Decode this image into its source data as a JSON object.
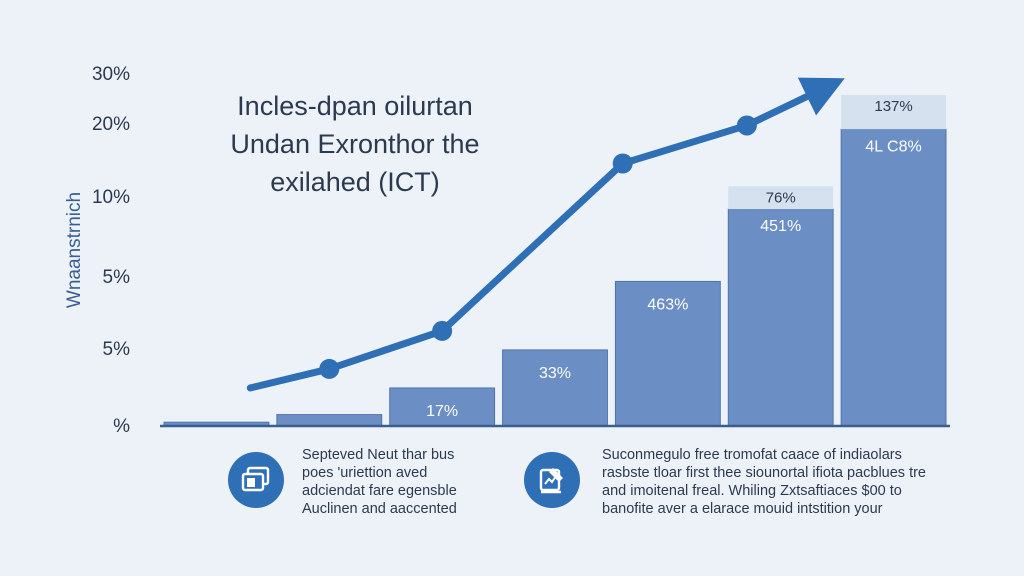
{
  "chart_data": {
    "type": "bar",
    "title_lines": [
      "Incles-dpan oilurtan",
      "Undan Exronthor the",
      "exilahed (ICT)"
    ],
    "ylabel": "Wnaanstrnich",
    "y_tick_labels": [
      "30%",
      "20%",
      "10%",
      "5%",
      "5%",
      "%"
    ],
    "categories": [
      "",
      "",
      "",
      "",
      "",
      "",
      ""
    ],
    "values": [
      1,
      3,
      10,
      20,
      38,
      57,
      78
    ],
    "ylim": [
      0,
      92
    ],
    "bar_labels": [
      "",
      "",
      "17%",
      "33%",
      "463%",
      "451%",
      "4L C8%"
    ],
    "bar_cap_values": [
      0,
      0,
      0,
      0,
      0,
      6,
      9
    ],
    "bar_cap_labels": [
      "",
      "",
      "",
      "",
      "",
      "76%",
      "137%"
    ],
    "line_series": {
      "x_positions": [
        0.8,
        1.5,
        2.5,
        4.1,
        5.2,
        5.9
      ],
      "values": [
        10,
        15,
        25,
        69,
        79,
        89
      ],
      "arrow_end": true
    },
    "colors": {
      "bar": "#6b8fc5",
      "bar_edge": "#4f74ad",
      "bar_cap": "#d5e1ef",
      "line": "#2f6fb5",
      "axis": "#3b5e92",
      "text": "#2b3a4f"
    }
  },
  "cards": [
    {
      "icon": "documents-icon",
      "lines": [
        "Septeved Neut thar bus",
        "poes 'uriettion aved",
        "adciendat fare egensble",
        "Auclinen and aaccented"
      ]
    },
    {
      "icon": "report-edit-icon",
      "lines": [
        "Suconmegulo free tromofat caace of indiaolars",
        "rasbste tloar first thee siounortal ifiota pacblues tre",
        "and imoitenal freal. Whiling Zxtsaftiaces $00 to",
        "banofite aver a elarace mouid intstition your"
      ]
    }
  ]
}
